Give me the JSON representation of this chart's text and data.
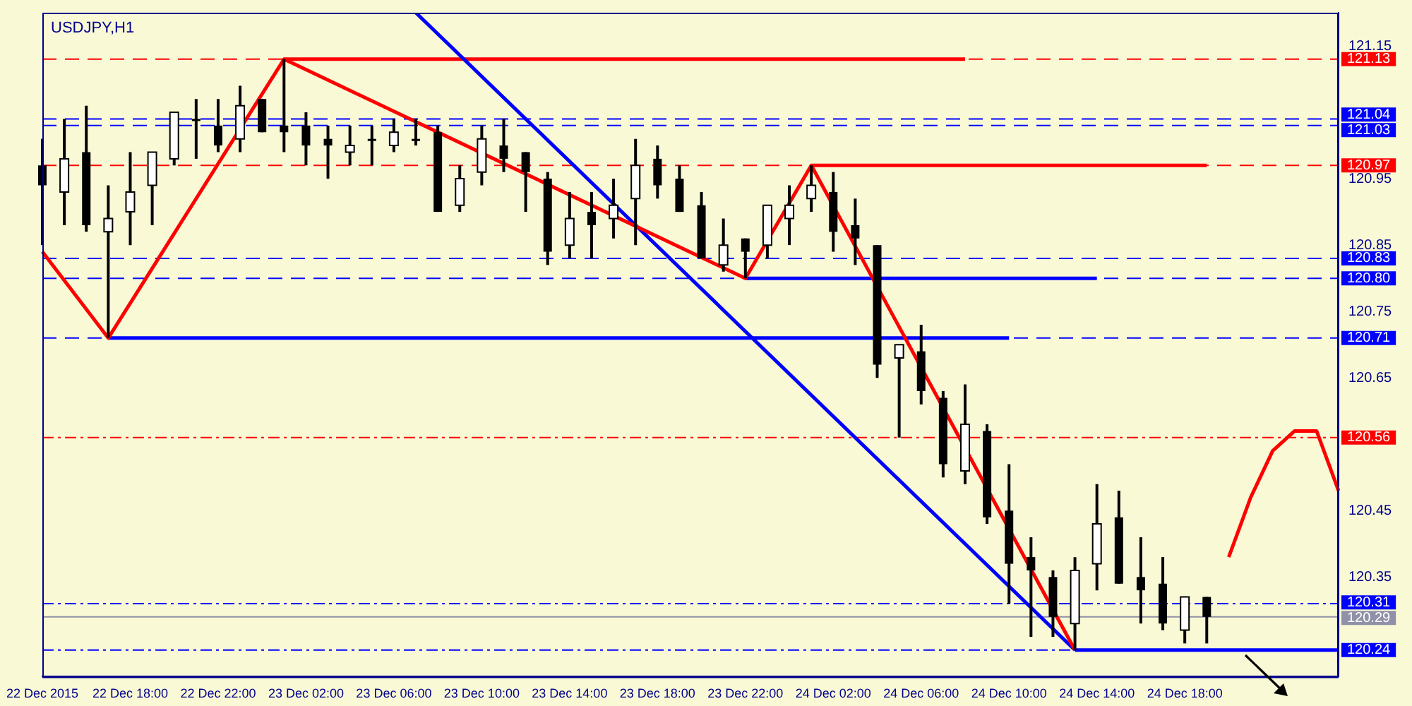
{
  "chart_data": {
    "type": "candlestick",
    "title": "USDJPY,H1",
    "categories": [
      "22 Dec 2015",
      null,
      null,
      null,
      "22 Dec 18:00",
      null,
      null,
      null,
      "22 Dec 22:00",
      null,
      null,
      null,
      "23 Dec 02:00",
      null,
      null,
      null,
      "23 Dec 06:00",
      null,
      null,
      null,
      "23 Dec 10:00",
      null,
      null,
      null,
      "23 Dec 14:00",
      null,
      null,
      null,
      "23 Dec 18:00",
      null,
      null,
      null,
      "23 Dec 22:00",
      null,
      null,
      null,
      "24 Dec 02:00",
      null,
      null,
      null,
      "24 Dec 06:00",
      null,
      null,
      null,
      "24 Dec 10:00",
      null,
      null,
      null,
      "24 Dec 14:00",
      null,
      null,
      null,
      "24 Dec 18:00",
      null,
      null,
      null,
      null,
      null,
      null,
      null
    ],
    "ohlc": [
      [
        120.97,
        121.01,
        120.85,
        120.94
      ],
      [
        120.93,
        121.04,
        120.88,
        120.98
      ],
      [
        120.99,
        121.06,
        120.87,
        120.88
      ],
      [
        120.87,
        120.94,
        120.71,
        120.89
      ],
      [
        120.9,
        120.99,
        120.85,
        120.93
      ],
      [
        120.94,
        120.99,
        120.88,
        120.99
      ],
      [
        120.98,
        121.05,
        120.97,
        121.05
      ],
      [
        121.04,
        121.07,
        120.98,
        121.04
      ],
      [
        121.03,
        121.07,
        120.99,
        121.0
      ],
      [
        121.01,
        121.09,
        120.99,
        121.06
      ],
      [
        121.07,
        121.07,
        121.02,
        121.02
      ],
      [
        121.03,
        121.13,
        120.99,
        121.02
      ],
      [
        121.03,
        121.05,
        120.97,
        121.0
      ],
      [
        121.01,
        121.03,
        120.95,
        121.0
      ],
      [
        120.99,
        121.03,
        120.97,
        121.0
      ],
      [
        121.01,
        121.03,
        120.97,
        121.01
      ],
      [
        121.0,
        121.04,
        120.99,
        121.02
      ],
      [
        121.01,
        121.04,
        121.0,
        121.01
      ],
      [
        121.02,
        121.03,
        120.9,
        120.9
      ],
      [
        120.91,
        120.97,
        120.9,
        120.95
      ],
      [
        120.96,
        121.03,
        120.94,
        121.01
      ],
      [
        121.0,
        121.04,
        120.96,
        120.98
      ],
      [
        120.99,
        120.99,
        120.9,
        120.96
      ],
      [
        120.95,
        120.96,
        120.82,
        120.84
      ],
      [
        120.85,
        120.93,
        120.83,
        120.89
      ],
      [
        120.9,
        120.93,
        120.83,
        120.88
      ],
      [
        120.89,
        120.95,
        120.86,
        120.91
      ],
      [
        120.92,
        121.01,
        120.85,
        120.97
      ],
      [
        120.98,
        121.0,
        120.92,
        120.94
      ],
      [
        120.95,
        120.97,
        120.9,
        120.9
      ],
      [
        120.91,
        120.93,
        120.83,
        120.83
      ],
      [
        120.82,
        120.89,
        120.81,
        120.85
      ],
      [
        120.86,
        120.86,
        120.8,
        120.84
      ],
      [
        120.85,
        120.91,
        120.83,
        120.91
      ],
      [
        120.89,
        120.94,
        120.85,
        120.91
      ],
      [
        120.92,
        120.97,
        120.9,
        120.94
      ],
      [
        120.93,
        120.96,
        120.84,
        120.87
      ],
      [
        120.88,
        120.92,
        120.82,
        120.86
      ],
      [
        120.85,
        120.85,
        120.65,
        120.67
      ],
      [
        120.68,
        120.7,
        120.56,
        120.7
      ],
      [
        120.69,
        120.73,
        120.61,
        120.63
      ],
      [
        120.62,
        120.63,
        120.5,
        120.52
      ],
      [
        120.51,
        120.64,
        120.49,
        120.58
      ],
      [
        120.57,
        120.58,
        120.43,
        120.44
      ],
      [
        120.45,
        120.52,
        120.31,
        120.37
      ],
      [
        120.38,
        120.41,
        120.26,
        120.36
      ],
      [
        120.35,
        120.36,
        120.26,
        120.29
      ],
      [
        120.28,
        120.38,
        120.24,
        120.36
      ],
      [
        120.37,
        120.49,
        120.33,
        120.43
      ],
      [
        120.44,
        120.48,
        120.34,
        120.34
      ],
      [
        120.35,
        120.41,
        120.28,
        120.33
      ],
      [
        120.34,
        120.38,
        120.27,
        120.28
      ],
      [
        120.27,
        120.32,
        120.25,
        120.32
      ],
      [
        120.32,
        120.32,
        120.25,
        120.29
      ],
      null,
      null,
      null,
      null,
      null,
      null
    ],
    "series": [
      {
        "type": "line",
        "color": "#ff0000",
        "values": [
          120.84,
          null,
          null,
          120.71,
          null,
          null,
          null,
          null,
          null,
          null,
          null,
          121.13,
          null,
          null,
          null,
          null,
          null,
          null,
          null,
          null,
          null,
          null,
          null,
          null,
          null,
          null,
          null,
          null,
          null,
          null,
          null,
          null,
          120.8,
          null,
          null,
          120.97,
          null,
          null,
          null,
          null,
          null,
          null,
          null,
          null,
          null,
          null,
          null,
          120.24,
          null,
          null,
          null,
          null,
          null,
          null,
          null,
          null,
          null,
          null,
          null,
          null
        ]
      },
      {
        "type": "line",
        "color": "#0000ff",
        "values": [
          null,
          null,
          null,
          null,
          null,
          null,
          null,
          null,
          null,
          null,
          null,
          null,
          null,
          null,
          null,
          null,
          null,
          121.2,
          null,
          null,
          null,
          null,
          null,
          null,
          null,
          null,
          null,
          null,
          null,
          null,
          null,
          null,
          null,
          null,
          null,
          null,
          null,
          null,
          null,
          null,
          null,
          null,
          null,
          null,
          null,
          null,
          null,
          120.24,
          null,
          null,
          null,
          null,
          null,
          null,
          null,
          null,
          null,
          null,
          null,
          null
        ]
      },
      {
        "type": "line",
        "color": "#ff0000",
        "values": [
          null,
          null,
          null,
          null,
          null,
          null,
          null,
          null,
          null,
          null,
          null,
          121.13,
          null,
          null,
          null,
          null,
          null,
          null,
          null,
          null,
          null,
          null,
          null,
          null,
          null,
          null,
          null,
          null,
          null,
          null,
          null,
          null,
          null,
          null,
          null,
          null,
          null,
          null,
          null,
          null,
          null,
          null,
          121.13,
          null,
          null,
          null,
          null,
          null,
          null,
          null,
          null,
          null,
          null,
          null,
          null,
          null,
          null,
          null,
          null,
          null
        ]
      },
      {
        "type": "line",
        "color": "#ff0000",
        "values": [
          null,
          null,
          null,
          null,
          null,
          null,
          null,
          null,
          null,
          null,
          null,
          null,
          null,
          null,
          null,
          null,
          null,
          null,
          null,
          null,
          null,
          null,
          null,
          null,
          null,
          null,
          null,
          null,
          null,
          null,
          null,
          null,
          null,
          null,
          null,
          120.97,
          null,
          null,
          null,
          null,
          null,
          null,
          null,
          null,
          null,
          null,
          null,
          null,
          null,
          null,
          null,
          null,
          null,
          120.97,
          null,
          null,
          null,
          null,
          null,
          null
        ]
      },
      {
        "type": "line",
        "color": "#0000ff",
        "values": [
          null,
          null,
          null,
          null,
          null,
          null,
          null,
          null,
          null,
          null,
          null,
          null,
          null,
          null,
          null,
          null,
          null,
          null,
          null,
          null,
          null,
          null,
          null,
          null,
          null,
          null,
          null,
          null,
          null,
          null,
          null,
          null,
          120.8,
          null,
          null,
          null,
          null,
          null,
          null,
          null,
          null,
          null,
          null,
          null,
          null,
          null,
          null,
          null,
          120.8,
          null,
          null,
          null,
          null,
          null,
          null,
          null,
          null,
          null,
          null,
          null
        ]
      },
      {
        "type": "line",
        "color": "#0000ff",
        "values": [
          null,
          null,
          null,
          120.71,
          null,
          null,
          null,
          null,
          null,
          null,
          null,
          null,
          null,
          null,
          null,
          null,
          null,
          null,
          null,
          null,
          null,
          null,
          null,
          null,
          null,
          null,
          null,
          null,
          null,
          null,
          null,
          null,
          null,
          null,
          null,
          null,
          null,
          null,
          null,
          null,
          null,
          null,
          null,
          null,
          120.71,
          null,
          null,
          null,
          null,
          null,
          null,
          null,
          null,
          null,
          null,
          null,
          null,
          null,
          null,
          null
        ]
      },
      {
        "type": "line",
        "color": "#0000ff",
        "values": [
          null,
          null,
          null,
          null,
          null,
          null,
          null,
          null,
          null,
          null,
          null,
          null,
          null,
          null,
          null,
          null,
          null,
          null,
          null,
          null,
          null,
          null,
          null,
          null,
          null,
          null,
          null,
          null,
          null,
          null,
          null,
          null,
          null,
          null,
          null,
          null,
          null,
          null,
          null,
          null,
          null,
          null,
          null,
          null,
          null,
          null,
          null,
          120.24,
          null,
          null,
          null,
          null,
          null,
          null,
          null,
          null,
          null,
          null,
          null,
          120.24
        ]
      },
      {
        "type": "line",
        "color": "#ff0000",
        "values": [
          null,
          null,
          null,
          null,
          null,
          null,
          null,
          null,
          null,
          null,
          null,
          null,
          null,
          null,
          null,
          null,
          null,
          null,
          null,
          null,
          null,
          null,
          null,
          null,
          null,
          null,
          null,
          null,
          null,
          null,
          null,
          null,
          null,
          null,
          null,
          null,
          null,
          null,
          null,
          null,
          null,
          null,
          null,
          null,
          null,
          null,
          null,
          null,
          null,
          null,
          null,
          null,
          null,
          null,
          120.38,
          120.47,
          120.54,
          120.57,
          120.57,
          120.48
        ]
      }
    ],
    "ylim": [
      120.2,
      121.2
    ],
    "yticks": [
      121.15,
      120.95,
      120.85,
      120.75,
      120.65,
      120.45,
      120.35
    ],
    "ref_lines": [
      {
        "axis": "y",
        "value": 121.13,
        "label": "121.13",
        "color": "#ff0000",
        "line_style": "dashed"
      },
      {
        "axis": "y",
        "value": 121.04,
        "label": "121.04",
        "color": "#0000ff",
        "line_style": "dashed"
      },
      {
        "axis": "y",
        "value": 121.03,
        "label": "121.03",
        "color": "#0000ff",
        "line_style": "dashed"
      },
      {
        "axis": "y",
        "value": 120.97,
        "label": "120.97",
        "color": "#ff0000",
        "line_style": "dashed"
      },
      {
        "axis": "y",
        "value": 120.83,
        "label": "120.83",
        "color": "#0000ff",
        "line_style": "dashed"
      },
      {
        "axis": "y",
        "value": 120.8,
        "label": "120.80",
        "color": "#0000ff",
        "line_style": "dashed"
      },
      {
        "axis": "y",
        "value": 120.71,
        "label": "120.71",
        "color": "#0000ff",
        "line_style": "dashed"
      },
      {
        "axis": "y",
        "value": 120.56,
        "label": "120.56",
        "color": "#ff0000",
        "line_style": "dotted"
      },
      {
        "axis": "y",
        "value": 120.31,
        "label": "120.31",
        "color": "#0000ff",
        "line_style": "dotted"
      },
      {
        "axis": "y",
        "value": 120.29,
        "label": "120.29",
        "color": "#9090a8",
        "line_style": "solid"
      },
      {
        "axis": "y",
        "value": 120.24,
        "label": "120.24",
        "color": "#0000ff",
        "line_style": "dotted"
      }
    ],
    "grid": false,
    "legend": false,
    "marker": "none"
  }
}
